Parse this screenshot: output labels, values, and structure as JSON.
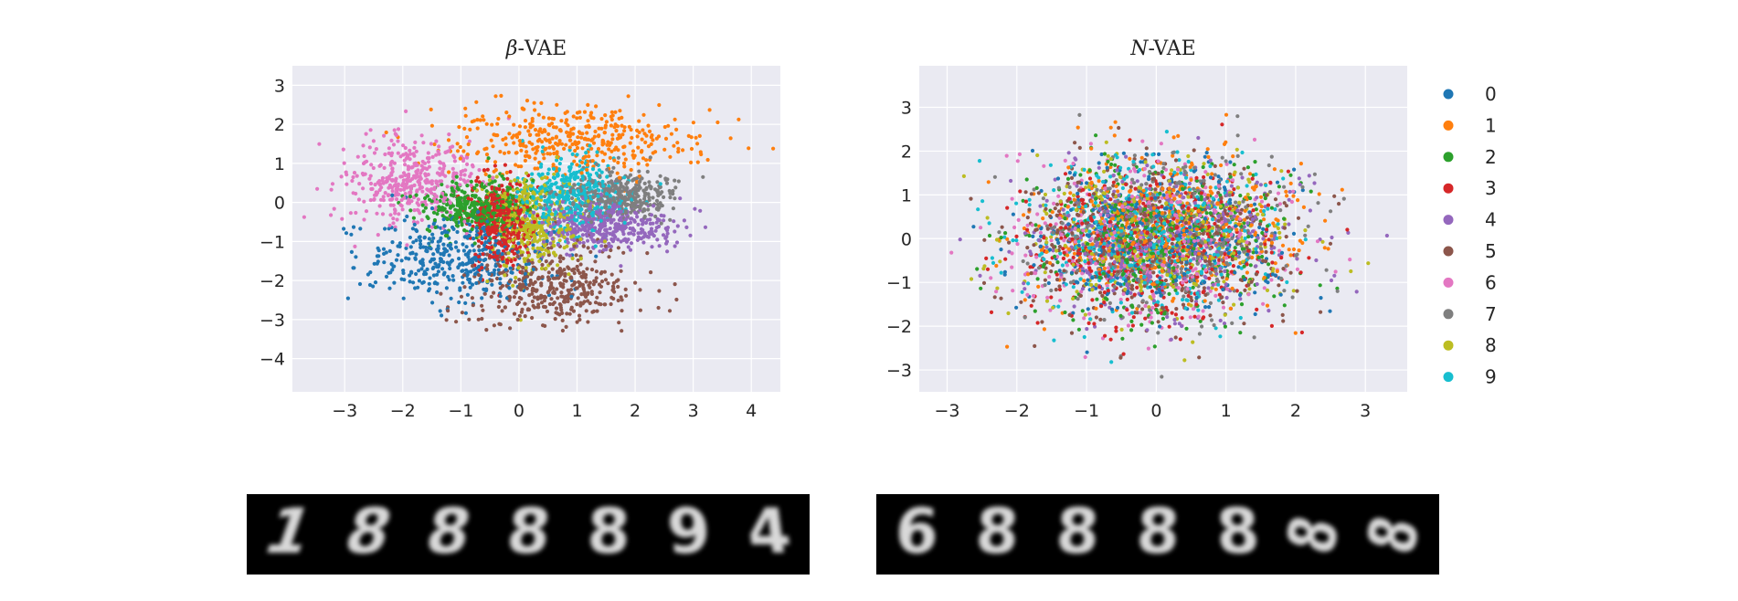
{
  "chart_data": [
    {
      "type": "scatter",
      "title": "β-VAE",
      "title_math": "β",
      "title_suffix": "-VAE",
      "xlim": [
        -3.9,
        4.5
      ],
      "ylim": [
        -4.85,
        3.5
      ],
      "xticks": [
        -3,
        -2,
        -1,
        0,
        1,
        2,
        3,
        4
      ],
      "yticks": [
        3,
        2,
        1,
        0,
        -1,
        -2,
        -3,
        -4
      ],
      "grid": true,
      "points_per_class": 400,
      "series": [
        {
          "name": "0",
          "color": "#1f77b4",
          "center": [
            -1.1,
            -1.45
          ],
          "spread": [
            0.75,
            0.55
          ]
        },
        {
          "name": "1",
          "color": "#ff7f0e",
          "center": [
            0.9,
            1.65
          ],
          "spread": [
            1.1,
            0.45
          ]
        },
        {
          "name": "2",
          "color": "#2ca02c",
          "center": [
            -0.7,
            -0.15
          ],
          "spread": [
            0.45,
            0.35
          ]
        },
        {
          "name": "3",
          "color": "#d62728",
          "center": [
            -0.3,
            -0.5
          ],
          "spread": [
            0.25,
            0.55
          ]
        },
        {
          "name": "4",
          "color": "#9467bd",
          "center": [
            1.4,
            -0.6
          ],
          "spread": [
            0.6,
            0.3
          ]
        },
        {
          "name": "5",
          "color": "#8c564b",
          "center": [
            0.6,
            -2.1
          ],
          "spread": [
            0.7,
            0.5
          ]
        },
        {
          "name": "6",
          "color": "#e377c2",
          "center": [
            -1.9,
            0.6
          ],
          "spread": [
            0.6,
            0.55
          ]
        },
        {
          "name": "7",
          "color": "#7f7f7f",
          "center": [
            1.7,
            0.15
          ],
          "spread": [
            0.5,
            0.3
          ]
        },
        {
          "name": "8",
          "color": "#bcbd22",
          "center": [
            0.2,
            -0.55
          ],
          "spread": [
            0.35,
            0.6
          ]
        },
        {
          "name": "9",
          "color": "#17becf",
          "center": [
            0.9,
            0.2
          ],
          "spread": [
            0.45,
            0.45
          ]
        }
      ]
    },
    {
      "type": "scatter",
      "title": "N-VAE",
      "title_math": "N",
      "title_suffix": "-VAE",
      "xlim": [
        -3.4,
        3.6
      ],
      "ylim": [
        -3.5,
        3.95
      ],
      "xticks": [
        -3,
        -2,
        -1,
        0,
        1,
        2,
        3
      ],
      "yticks": [
        3,
        2,
        1,
        0,
        -1,
        -2,
        -3
      ],
      "grid": true,
      "points_per_class": 400,
      "series": [
        {
          "name": "0",
          "color": "#1f77b4",
          "center": [
            0,
            0
          ],
          "spread": [
            0.95,
            0.85
          ]
        },
        {
          "name": "1",
          "color": "#ff7f0e",
          "center": [
            0.2,
            0.2
          ],
          "spread": [
            1.0,
            0.85
          ]
        },
        {
          "name": "2",
          "color": "#2ca02c",
          "center": [
            0,
            0
          ],
          "spread": [
            0.95,
            0.9
          ]
        },
        {
          "name": "3",
          "color": "#d62728",
          "center": [
            -0.1,
            -0.1
          ],
          "spread": [
            0.9,
            0.85
          ]
        },
        {
          "name": "4",
          "color": "#9467bd",
          "center": [
            0.1,
            0
          ],
          "spread": [
            0.95,
            0.85
          ]
        },
        {
          "name": "5",
          "color": "#8c564b",
          "center": [
            0,
            -0.1
          ],
          "spread": [
            0.95,
            0.9
          ]
        },
        {
          "name": "6",
          "color": "#e377c2",
          "center": [
            -0.2,
            0
          ],
          "spread": [
            0.95,
            0.9
          ]
        },
        {
          "name": "7",
          "color": "#7f7f7f",
          "center": [
            0.1,
            0.1
          ],
          "spread": [
            0.95,
            0.9
          ]
        },
        {
          "name": "8",
          "color": "#bcbd22",
          "center": [
            0,
            0
          ],
          "spread": [
            0.9,
            0.85
          ]
        },
        {
          "name": "9",
          "color": "#17becf",
          "center": [
            -0.1,
            0.1
          ],
          "spread": [
            0.9,
            0.85
          ]
        }
      ]
    }
  ],
  "legend": {
    "placement": "right",
    "entries": [
      {
        "label": "0",
        "color": "#1f77b4"
      },
      {
        "label": "1",
        "color": "#ff7f0e"
      },
      {
        "label": "2",
        "color": "#2ca02c"
      },
      {
        "label": "3",
        "color": "#d62728"
      },
      {
        "label": "4",
        "color": "#9467bd"
      },
      {
        "label": "5",
        "color": "#8c564b"
      },
      {
        "label": "6",
        "color": "#e377c2"
      },
      {
        "label": "7",
        "color": "#7f7f7f"
      },
      {
        "label": "8",
        "color": "#bcbd22"
      },
      {
        "label": "9",
        "color": "#17becf"
      }
    ]
  },
  "interpolation_strips": [
    {
      "name": "beta-vae-interpolation",
      "frames": [
        "1",
        "8",
        "8",
        "8",
        "8",
        "9",
        "4"
      ]
    },
    {
      "name": "n-vae-interpolation",
      "frames": [
        "6",
        "8",
        "8",
        "8",
        "8",
        "8",
        "8"
      ]
    }
  ],
  "colors": {
    "plot_background": "#eaeaf2",
    "grid": "#ffffff",
    "strip_background": "#000000"
  }
}
